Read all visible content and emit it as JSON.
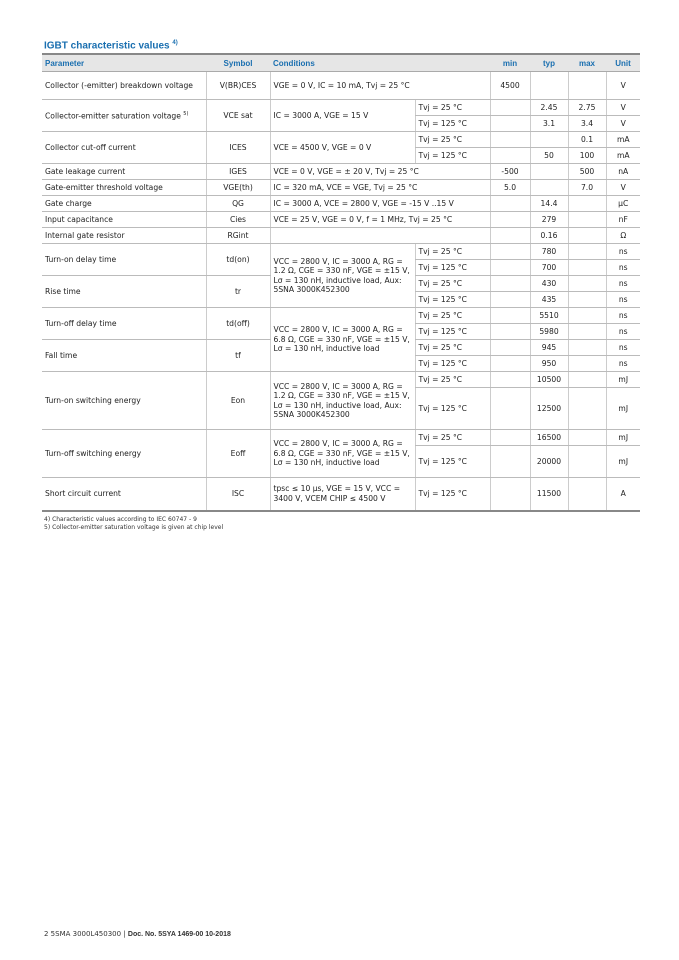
{
  "title": "IGBT characteristic values",
  "title_note": "4)",
  "headers": [
    "Parameter",
    "Symbol",
    "Conditions",
    "min",
    "typ",
    "max",
    "Unit"
  ],
  "r": {
    "bd": {
      "p": "Collector (-emitter) breakdown voltage",
      "s": "V(BR)CES",
      "c": "VGE = 0 V, IC = 10 mA, Tvj = 25 °C",
      "min": "4500",
      "u": "V"
    },
    "sat": {
      "p": "Collector-emitter saturation voltage",
      "note": "5)",
      "s": "VCE sat",
      "c": "IC = 3000 A, VGE = 15 V",
      "t1": "Tvj = 25 °C",
      "typ1": "2.45",
      "max1": "2.75",
      "u1": "V",
      "t2": "Tvj = 125 °C",
      "typ2": "3.1",
      "max2": "3.4",
      "u2": "V"
    },
    "ces": {
      "p": "Collector cut-off current",
      "s": "ICES",
      "c": "VCE = 4500 V, VGE = 0 V",
      "t1": "Tvj = 25 °C",
      "max1": "0.1",
      "u1": "mA",
      "t2": "Tvj = 125 °C",
      "typ2": "50",
      "max2": "100",
      "u2": "mA"
    },
    "ges": {
      "p": "Gate leakage current",
      "s": "IGES",
      "c": "VCE = 0 V, VGE = ± 20 V, Tvj = 25 °C",
      "min": "-500",
      "max": "500",
      "u": "nA"
    },
    "th": {
      "p": "Gate-emitter threshold voltage",
      "s": "VGE(th)",
      "c": "IC = 320 mA, VCE = VGE, Tvj = 25 °C",
      "min": "5.0",
      "max": "7.0",
      "u": "V"
    },
    "qg": {
      "p": "Gate charge",
      "s": "QG",
      "c": "IC = 3000 A, VCE = 2800 V, VGE = -15 V ..15 V",
      "typ": "14.4",
      "u": "µC"
    },
    "cies": {
      "p": "Input capacitance",
      "s": "Cies",
      "c": "VCE = 25 V, VGE = 0 V, f = 1 MHz, Tvj = 25 °C",
      "typ": "279",
      "u": "nF"
    },
    "rg": {
      "p": "Internal gate resistor",
      "s": "RGint",
      "typ": "0.16",
      "u": "Ω"
    },
    "on_cond": "VCC = 2800 V, IC = 3000 A, RG = 1.2 Ω, CGE = 330 nF, VGE = ±15 V, Lσ = 130 nH, inductive load, Aux: 5SNA 3000K452300",
    "off_cond": "VCC = 2800 V, IC = 3000 A, RG = 6.8 Ω, CGE = 330 nF, VGE = ±15 V, Lσ = 130 nH, inductive load",
    "tdon": {
      "p": "Turn-on delay time",
      "s": "td(on)",
      "t1": "Tvj = 25 °C",
      "typ1": "780",
      "u1": "ns",
      "t2": "Tvj = 125 °C",
      "typ2": "700",
      "u2": "ns"
    },
    "tr": {
      "p": "Rise time",
      "s": "tr",
      "t1": "Tvj = 25 °C",
      "typ1": "430",
      "u1": "ns",
      "t2": "Tvj = 125 °C",
      "typ2": "435",
      "u2": "ns"
    },
    "tdoff": {
      "p": "Turn-off delay time",
      "s": "td(off)",
      "t1": "Tvj = 25 °C",
      "typ1": "5510",
      "u1": "ns",
      "t2": "Tvj = 125 °C",
      "typ2": "5980",
      "u2": "ns"
    },
    "tf": {
      "p": "Fall time",
      "s": "tf",
      "t1": "Tvj = 25 °C",
      "typ1": "945",
      "u1": "ns",
      "t2": "Tvj = 125 °C",
      "typ2": "950",
      "u2": "ns"
    },
    "eon": {
      "p": "Turn-on switching energy",
      "s": "Eon",
      "c": "VCC = 2800 V, IC = 3000 A, RG = 1.2 Ω, CGE = 330 nF, VGE = ±15 V, Lσ = 130 nH, inductive load, Aux: 5SNA 3000K452300",
      "t1": "Tvj = 25 °C",
      "typ1": "10500",
      "u1": "mJ",
      "t2": "Tvj = 125 °C",
      "typ2": "12500",
      "u2": "mJ"
    },
    "eoff": {
      "p": "Turn-off switching energy",
      "s": "Eoff",
      "c": "VCC = 2800 V, IC = 3000 A, RG = 6.8 Ω, CGE = 330 nF, VGE = ±15 V, Lσ = 130 nH, inductive load",
      "t1": "Tvj = 25 °C",
      "typ1": "16500",
      "u1": "mJ",
      "t2": "Tvj = 125 °C",
      "typ2": "20000",
      "u2": "mJ"
    },
    "isc": {
      "p": "Short circuit current",
      "s": "ISC",
      "c": "tpsc ≤ 10 µs, VGE = 15 V, VCC = 3400 V, VCEM CHIP ≤ 4500 V",
      "t1": "Tvj = 125 °C",
      "typ1": "11500",
      "u1": "A"
    }
  },
  "footnotes": [
    "4) Characteristic values according to IEC 60747 - 9",
    "5) Collector-emitter saturation voltage is given at chip level"
  ],
  "footer": {
    "page": "2 5SMA 3000L450300 |",
    "doc": "Doc. No. 5SYA 1469-00 10-2018"
  }
}
